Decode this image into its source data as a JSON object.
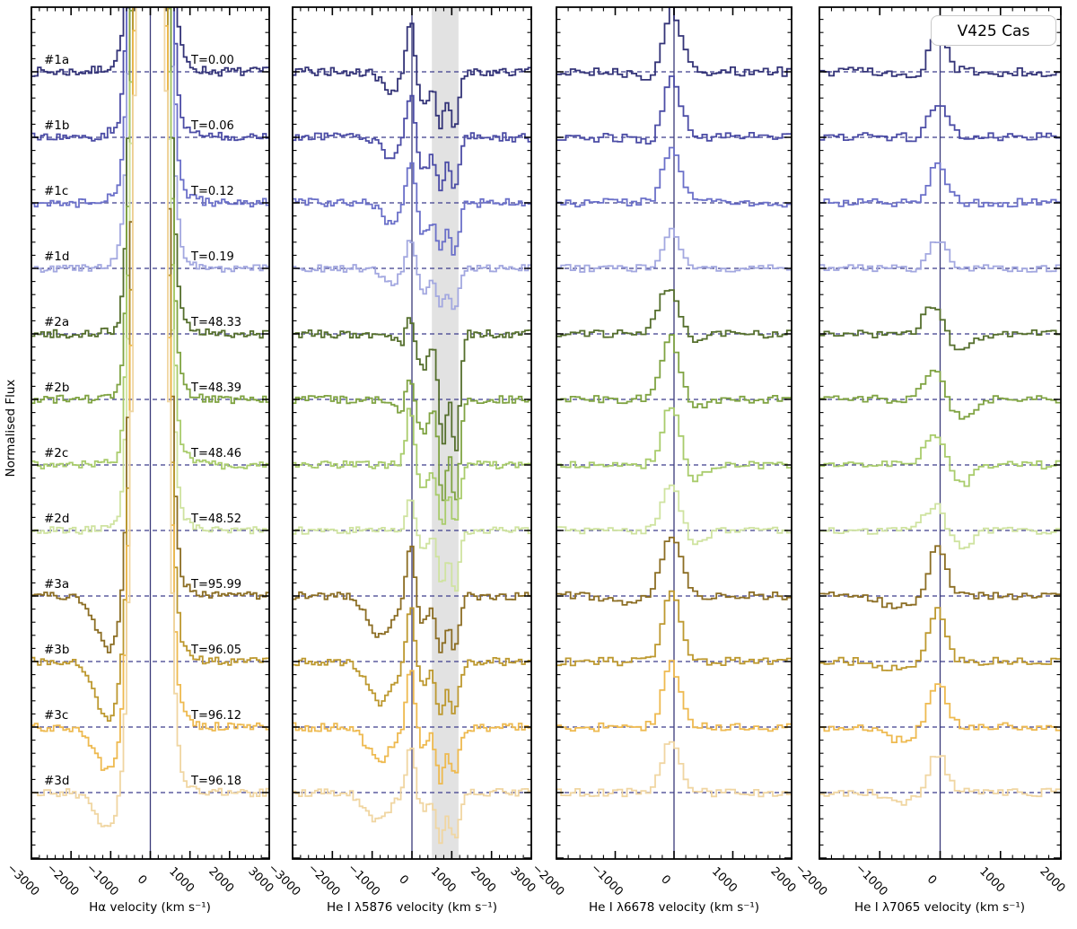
{
  "chart_data": {
    "type": "line",
    "title": "V425 Cas",
    "ylabel": "Normalised Flux",
    "legend_position": "none",
    "grid": false,
    "style": {
      "baseline_color": "#3c3c8c",
      "zero_velocity_line_color": "#3a3a7a",
      "shaded_band_color": "#cfcfcf",
      "spine_color": "#000000",
      "label_color": "#000000"
    },
    "flux_note": "Each spectrum offset vertically; amplitudes are in units of the offset step between adjacent spectra; gaussian features = [amplitude, center_km_s, sigma_km_s]",
    "panels": [
      {
        "key": "halpha",
        "xlabel": "Hα velocity (km s⁻¹)",
        "xmin": -3000,
        "xmax": 3000,
        "major_tick": 1000,
        "minor_tick": 200,
        "bin": 80,
        "xtick_labels": [
          "−3000",
          "−2000",
          "−1000",
          "0",
          "1000",
          "2000",
          "3000"
        ],
        "shaded_band": null
      },
      {
        "key": "he5876",
        "xlabel": "He I λ5876 velocity (km s⁻¹)",
        "xmin": -3000,
        "xmax": 3000,
        "major_tick": 1000,
        "minor_tick": 200,
        "bin": 80,
        "xtick_labels": [
          "−3000",
          "−2000",
          "−1000",
          "0",
          "1000",
          "2000",
          "3000"
        ],
        "shaded_band": [
          500,
          1170
        ]
      },
      {
        "key": "he6678",
        "xlabel": "He I λ6678 velocity (km s⁻¹)",
        "xmin": -2000,
        "xmax": 2000,
        "major_tick": 1000,
        "minor_tick": 200,
        "bin": 80,
        "xtick_labels": [
          "−2000",
          "−1000",
          "0",
          "1000",
          "2000"
        ],
        "shaded_band": null
      },
      {
        "key": "he7065",
        "xlabel": "He I λ7065 velocity (km s⁻¹)",
        "xmin": -2000,
        "xmax": 2000,
        "major_tick": 1000,
        "minor_tick": 200,
        "bin": 80,
        "xtick_labels": [
          "−2000",
          "−1000",
          "0",
          "1000",
          "2000"
        ],
        "shaded_band": null
      }
    ],
    "spectra": [
      {
        "label": "#1a",
        "time": "T=0.00",
        "color": "#343478",
        "noise": 0.07,
        "features": {
          "halpha": [
            [
              41,
              0,
              240
            ],
            [
              0.62,
              0,
              520
            ],
            [
              -0.1,
              -600,
              200
            ]
          ],
          "he5876": [
            [
              0.78,
              -30,
              105
            ],
            [
              -0.33,
              -550,
              200
            ],
            [
              -0.5,
              300,
              150
            ],
            [
              -0.8,
              720,
              105
            ],
            [
              -0.82,
              1070,
              115
            ]
          ],
          "he6678": [
            [
              0.95,
              -30,
              150
            ],
            [
              -0.1,
              -450,
              200
            ]
          ],
          "he7065": [
            [
              0.62,
              -30,
              140
            ],
            [
              -0.08,
              -500,
              200
            ]
          ]
        }
      },
      {
        "label": "#1b",
        "time": "T=0.06",
        "color": "#4c4da6",
        "noise": 0.07,
        "features": {
          "halpha": [
            [
              41,
              0,
              240
            ],
            [
              0.62,
              0,
              520
            ],
            [
              -0.1,
              -600,
              200
            ]
          ],
          "he5876": [
            [
              0.72,
              -30,
              105
            ],
            [
              -0.33,
              -550,
              200
            ],
            [
              -0.5,
              300,
              150
            ],
            [
              -0.78,
              720,
              105
            ],
            [
              -0.8,
              1070,
              115
            ]
          ],
          "he6678": [
            [
              0.9,
              -30,
              150
            ],
            [
              -0.08,
              -450,
              200
            ]
          ],
          "he7065": [
            [
              0.55,
              -30,
              140
            ]
          ]
        }
      },
      {
        "label": "#1c",
        "time": "T=0.12",
        "color": "#6b70c9",
        "noise": 0.065,
        "features": {
          "halpha": [
            [
              41,
              0,
              240
            ],
            [
              0.62,
              0,
              520
            ],
            [
              -0.1,
              -600,
              200
            ]
          ],
          "he5876": [
            [
              0.7,
              -30,
              105
            ],
            [
              -0.33,
              -550,
              200
            ],
            [
              -0.48,
              300,
              150
            ],
            [
              -0.75,
              720,
              105
            ],
            [
              -0.78,
              1070,
              115
            ]
          ],
          "he6678": [
            [
              0.85,
              -30,
              150
            ]
          ],
          "he7065": [
            [
              0.6,
              -30,
              140
            ]
          ]
        }
      },
      {
        "label": "#1d",
        "time": "T=0.19",
        "color": "#a3a8e0",
        "noise": 0.055,
        "features": {
          "halpha": [
            [
              41,
              0,
              240
            ],
            [
              0.62,
              0,
              520
            ],
            [
              -0.08,
              -600,
              200
            ]
          ],
          "he5876": [
            [
              0.5,
              -30,
              105
            ],
            [
              -0.25,
              -550,
              200
            ],
            [
              -0.35,
              300,
              150
            ],
            [
              -0.6,
              720,
              105
            ],
            [
              -0.65,
              1070,
              115
            ]
          ],
          "he6678": [
            [
              0.6,
              -30,
              140
            ]
          ],
          "he7065": [
            [
              0.45,
              -30,
              140
            ]
          ]
        }
      },
      {
        "label": "#2a",
        "time": "T=48.33",
        "color": "#556f2d",
        "noise": 0.06,
        "features": {
          "halpha": [
            [
              41,
              0,
              240
            ],
            [
              0.62,
              0,
              520
            ],
            [
              -0.15,
              -750,
              220
            ]
          ],
          "he5876": [
            [
              0.33,
              -80,
              120
            ],
            [
              -0.25,
              -250,
              120
            ],
            [
              -0.55,
              280,
              140
            ],
            [
              -1.7,
              780,
              100
            ],
            [
              -1.8,
              1100,
              100
            ]
          ],
          "he6678": [
            [
              0.75,
              -70,
              170
            ],
            [
              -0.18,
              330,
              180
            ]
          ],
          "he7065": [
            [
              0.42,
              -100,
              170
            ],
            [
              -0.28,
              330,
              190
            ]
          ]
        }
      },
      {
        "label": "#2b",
        "time": "T=48.39",
        "color": "#80a443",
        "noise": 0.06,
        "features": {
          "halpha": [
            [
              41,
              0,
              240
            ],
            [
              0.62,
              0,
              520
            ],
            [
              -0.15,
              -750,
              220
            ]
          ],
          "he5876": [
            [
              0.4,
              -60,
              110
            ],
            [
              -0.25,
              -250,
              120
            ],
            [
              -0.5,
              280,
              140
            ],
            [
              -1.5,
              780,
              100
            ],
            [
              -1.6,
              1100,
              100
            ]
          ],
          "he6678": [
            [
              0.95,
              -60,
              160
            ],
            [
              -0.15,
              350,
              180
            ]
          ],
          "he7065": [
            [
              0.45,
              -90,
              170
            ],
            [
              -0.3,
              340,
              190
            ]
          ]
        }
      },
      {
        "label": "#2c",
        "time": "T=48.46",
        "color": "#a9cc6c",
        "noise": 0.06,
        "features": {
          "halpha": [
            [
              41,
              0,
              240
            ],
            [
              0.62,
              0,
              520
            ],
            [
              -0.14,
              -750,
              220
            ]
          ],
          "he5876": [
            [
              0.88,
              -40,
              100
            ],
            [
              -0.35,
              280,
              130
            ],
            [
              -0.95,
              760,
              100
            ],
            [
              -0.9,
              1090,
              105
            ]
          ],
          "he6678": [
            [
              0.9,
              -50,
              150
            ],
            [
              -0.22,
              350,
              170
            ]
          ],
          "he7065": [
            [
              0.48,
              -80,
              160
            ],
            [
              -0.32,
              350,
              180
            ]
          ]
        }
      },
      {
        "label": "#2d",
        "time": "T=48.52",
        "color": "#cfe3a0",
        "noise": 0.055,
        "features": {
          "halpha": [
            [
              41,
              0,
              240
            ],
            [
              0.62,
              0,
              520
            ],
            [
              -0.12,
              -750,
              220
            ]
          ],
          "he5876": [
            [
              0.5,
              -40,
              100
            ],
            [
              -0.3,
              280,
              130
            ],
            [
              -0.85,
              760,
              100
            ],
            [
              -0.9,
              1090,
              105
            ]
          ],
          "he6678": [
            [
              0.75,
              -50,
              150
            ],
            [
              -0.18,
              350,
              170
            ]
          ],
          "he7065": [
            [
              0.4,
              -80,
              160
            ],
            [
              -0.25,
              350,
              180
            ]
          ]
        }
      },
      {
        "label": "#3a",
        "time": "T=95.99",
        "color": "#8c6e24",
        "noise": 0.06,
        "features": {
          "halpha": [
            [
              41,
              0,
              240
            ],
            [
              0.62,
              0,
              520
            ],
            [
              -0.9,
              -1000,
              330
            ]
          ],
          "he5876": [
            [
              0.82,
              -30,
              100
            ],
            [
              -0.6,
              -780,
              320
            ],
            [
              -0.4,
              280,
              130
            ],
            [
              -0.85,
              720,
              105
            ],
            [
              -0.8,
              1070,
              115
            ]
          ],
          "he6678": [
            [
              0.95,
              -40,
              160
            ],
            [
              -0.1,
              -800,
              250
            ]
          ],
          "he7065": [
            [
              0.75,
              -40,
              140
            ],
            [
              -0.18,
              -700,
              250
            ]
          ]
        }
      },
      {
        "label": "#3b",
        "time": "T=96.05",
        "color": "#bd9930",
        "noise": 0.06,
        "features": {
          "halpha": [
            [
              41,
              0,
              240
            ],
            [
              0.62,
              0,
              520
            ],
            [
              -0.95,
              -1030,
              330
            ]
          ],
          "he5876": [
            [
              0.9,
              -30,
              100
            ],
            [
              -0.62,
              -780,
              320
            ],
            [
              -0.38,
              280,
              130
            ],
            [
              -0.85,
              720,
              105
            ],
            [
              -0.78,
              1070,
              115
            ]
          ],
          "he6678": [
            [
              1.05,
              -40,
              150
            ]
          ],
          "he7065": [
            [
              0.8,
              -40,
              140
            ],
            [
              -0.12,
              -700,
              250
            ]
          ]
        }
      },
      {
        "label": "#3c",
        "time": "T=96.12",
        "color": "#eeba50",
        "noise": 0.065,
        "features": {
          "halpha": [
            [
              41,
              0,
              240
            ],
            [
              0.62,
              0,
              520
            ],
            [
              -0.72,
              -1050,
              320
            ]
          ],
          "he5876": [
            [
              0.95,
              -30,
              100
            ],
            [
              -0.5,
              -820,
              300
            ],
            [
              -0.3,
              280,
              130
            ],
            [
              -0.8,
              720,
              105
            ],
            [
              -0.75,
              1070,
              115
            ]
          ],
          "he6678": [
            [
              0.95,
              -40,
              150
            ]
          ],
          "he7065": [
            [
              0.72,
              -40,
              140
            ],
            [
              -0.2,
              -650,
              220
            ]
          ]
        }
      },
      {
        "label": "#3d",
        "time": "T=96.18",
        "color": "#f0d6a2",
        "noise": 0.06,
        "features": {
          "halpha": [
            [
              41,
              0,
              240
            ],
            [
              0.62,
              0,
              520
            ],
            [
              -0.6,
              -1050,
              320
            ]
          ],
          "he5876": [
            [
              0.75,
              -30,
              100
            ],
            [
              -0.42,
              -850,
              300
            ],
            [
              -0.25,
              280,
              130
            ],
            [
              -0.72,
              720,
              105
            ],
            [
              -0.7,
              1070,
              115
            ]
          ],
          "he6678": [
            [
              0.8,
              -40,
              150
            ]
          ],
          "he7065": [
            [
              0.6,
              -40,
              140
            ],
            [
              -0.15,
              -650,
              220
            ]
          ]
        }
      }
    ]
  }
}
